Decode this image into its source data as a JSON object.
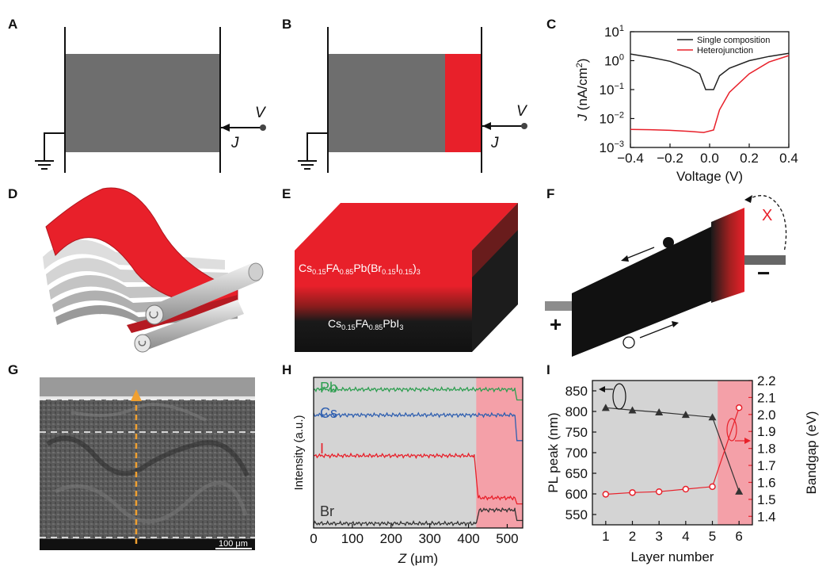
{
  "panels": {
    "a": {
      "label": "A",
      "v": "V",
      "j": "J"
    },
    "b": {
      "label": "B",
      "v": "V",
      "j": "J"
    },
    "c": {
      "label": "C"
    },
    "d": {
      "label": "D"
    },
    "e": {
      "label": "E",
      "top_formula": {
        "p1": "Cs",
        "s1": "0.15",
        "p2": "FA",
        "s2": "0.85",
        "p3": "Pb(Br",
        "s3": "0.15",
        "p4": "I",
        "s4": "0.15",
        "p5": ")",
        "s5": "3"
      },
      "bottom_formula": {
        "p1": "Cs",
        "s1": "0.15",
        "p2": "FA",
        "s2": "0.85",
        "p3": "PbI",
        "s3": "3"
      }
    },
    "f": {
      "label": "F",
      "x_mark": "X",
      "plus": "+",
      "minus": "−"
    },
    "g": {
      "label": "G",
      "scale_bar": "100 μm"
    },
    "h": {
      "label": "H"
    },
    "i": {
      "label": "I"
    }
  },
  "colors": {
    "red": "#e8202a",
    "gray_fill": "#6e6e6e",
    "pink": "#f4a0a8",
    "plot_gray": "#d4d4d4",
    "pb_green": "#2e9e50",
    "cs_blue": "#2f5fb0",
    "i_red": "#e8202a",
    "br_black": "#333333"
  },
  "chart_data": [
    {
      "id": "C",
      "type": "line",
      "xlabel": "Voltage (V)",
      "ylabel": "J (nA/cm²)",
      "ylabel_parts": {
        "j": "J",
        "unit": "(nA/cm",
        "sup": "2",
        "close": ")"
      },
      "xlim": [
        -0.4,
        0.4
      ],
      "ylim_log10": [
        -3,
        1
      ],
      "log_y": true,
      "x_ticks": [
        "−0.4",
        "−0.2",
        "0.0",
        "0.2",
        "0.4"
      ],
      "y_ticks": [
        {
          "base": "10",
          "exp": "1"
        },
        {
          "base": "10",
          "exp": "0"
        },
        {
          "base": "10",
          "exp": "−1"
        },
        {
          "base": "10",
          "exp": "−2"
        },
        {
          "base": "10",
          "exp": "−3"
        }
      ],
      "legend_position": "top-right",
      "series": [
        {
          "name": "Single composition",
          "color": "#222222",
          "x": [
            -0.4,
            -0.3,
            -0.2,
            -0.1,
            -0.05,
            -0.02,
            0.02,
            0.05,
            0.1,
            0.2,
            0.3,
            0.4
          ],
          "y": [
            1.7,
            1.3,
            0.95,
            0.55,
            0.35,
            0.1,
            0.1,
            0.3,
            0.55,
            1.0,
            1.4,
            1.8
          ]
        },
        {
          "name": "Heterojunction",
          "color": "#e8202a",
          "x": [
            -0.4,
            -0.3,
            -0.2,
            -0.1,
            -0.03,
            0.02,
            0.05,
            0.1,
            0.2,
            0.3,
            0.4
          ],
          "y": [
            0.0042,
            0.0041,
            0.0039,
            0.0036,
            0.0033,
            0.004,
            0.02,
            0.08,
            0.35,
            0.9,
            1.5
          ]
        }
      ]
    },
    {
      "id": "H",
      "type": "line",
      "xlabel": "Z (μm)",
      "xlabel_parts": {
        "z": "Z",
        "unit": " (μm)"
      },
      "ylabel": "Intensity (a.u.)",
      "xlim": [
        0,
        540
      ],
      "x_ticks": [
        "0",
        "100",
        "200",
        "300",
        "400",
        "500"
      ],
      "shaded_region_x": [
        420,
        540
      ],
      "series": [
        {
          "name": "Pb",
          "color": "#2e9e50",
          "x": [
            0,
            520,
            525,
            540
          ],
          "y": [
            0.92,
            0.92,
            0.85,
            0.85
          ]
        },
        {
          "name": "Cs",
          "color": "#2f5fb0",
          "x": [
            0,
            520,
            525,
            540
          ],
          "y": [
            0.75,
            0.75,
            0.58,
            0.58
          ]
        },
        {
          "name": "I",
          "color": "#e8202a",
          "x": [
            0,
            415,
            425,
            520,
            525,
            540
          ],
          "y": [
            0.48,
            0.48,
            0.2,
            0.2,
            0.16,
            0.16
          ]
        },
        {
          "name": "Br",
          "color": "#333333",
          "x": [
            0,
            420,
            428,
            520,
            525,
            540
          ],
          "y": [
            0.03,
            0.03,
            0.12,
            0.12,
            0.05,
            0.05
          ]
        }
      ]
    },
    {
      "id": "I",
      "type": "line",
      "xlabel": "Layer number",
      "ylabel_left": "PL peak (nm)",
      "ylabel_right": "Bandgap (eV)",
      "xlim": [
        0.5,
        6.5
      ],
      "ylim_left": [
        525,
        875
      ],
      "ylim_right": [
        1.35,
        2.2
      ],
      "x_ticks": [
        "1",
        "2",
        "3",
        "4",
        "5",
        "6"
      ],
      "y_ticks_left": [
        "550",
        "600",
        "650",
        "700",
        "750",
        "800",
        "850"
      ],
      "y_ticks_right": [
        "1.4",
        "1.5",
        "1.6",
        "1.7",
        "1.8",
        "1.9",
        "2.0",
        "2.1",
        "2.2"
      ],
      "shaded_region_x": [
        5.2,
        6.5
      ],
      "series": [
        {
          "name": "PL peak",
          "axis": "left",
          "color": "#333333",
          "marker": "triangle",
          "x": [
            1,
            2,
            3,
            4,
            5,
            6
          ],
          "y": [
            809,
            803,
            798,
            792,
            786,
            606
          ]
        },
        {
          "name": "Bandgap",
          "axis": "right",
          "color": "#e8202a",
          "marker": "circle",
          "x": [
            1,
            2,
            3,
            4,
            5,
            6
          ],
          "y": [
            1.53,
            1.54,
            1.545,
            1.56,
            1.575,
            2.04
          ]
        }
      ]
    }
  ]
}
